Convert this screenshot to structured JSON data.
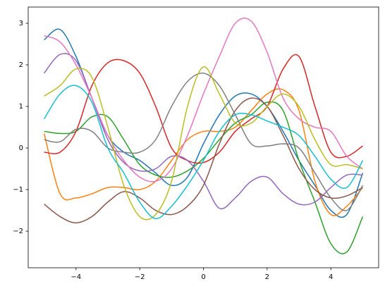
{
  "chart_data": {
    "type": "line",
    "x": [
      -5,
      -4.5,
      -4,
      -3.5,
      -3,
      -2.5,
      -2,
      -1.5,
      -1,
      -0.5,
      0,
      0.5,
      1,
      1.5,
      2,
      2.5,
      3,
      3.5,
      4,
      4.5,
      5
    ],
    "xlim": [
      -5.5,
      5.5
    ],
    "ylim": [
      -2.88,
      3.39
    ],
    "xticks": [
      {
        "value": -4,
        "label": "−4"
      },
      {
        "value": -2,
        "label": "−2"
      },
      0,
      2,
      4
    ],
    "yticks": [
      {
        "value": -2,
        "label": "−2"
      },
      {
        "value": -1,
        "label": "−1"
      },
      0,
      1,
      2,
      3
    ],
    "grid": false,
    "series": [
      {
        "color": "#1f77b4",
        "values": [
          2.6,
          2.85,
          2.2,
          1.2,
          0.3,
          -0.1,
          -0.3,
          -0.6,
          -0.9,
          -0.7,
          0.1,
          0.8,
          1.25,
          1.3,
          1.0,
          0.4,
          -0.3,
          -0.9,
          -1.5,
          -1.6,
          -0.6
        ]
      },
      {
        "color": "#ff7f0e",
        "values": [
          0.35,
          -1.1,
          -1.2,
          -1.1,
          -0.95,
          -0.95,
          -1.0,
          -0.8,
          -0.3,
          0.2,
          0.4,
          0.4,
          0.5,
          0.9,
          1.3,
          1.4,
          0.9,
          -0.8,
          -1.6,
          -1.4,
          -0.95
        ]
      },
      {
        "color": "#2ca02c",
        "values": [
          0.4,
          0.35,
          0.4,
          0.75,
          0.75,
          0.2,
          -0.4,
          -0.65,
          -0.7,
          -0.55,
          -0.25,
          0.2,
          0.6,
          0.8,
          1.1,
          0.9,
          -0.3,
          -1.3,
          -2.3,
          -2.5,
          -1.65
        ]
      },
      {
        "color": "#d62728",
        "values": [
          -0.1,
          -0.1,
          0.4,
          1.5,
          2.05,
          2.1,
          1.8,
          1.0,
          0.0,
          -0.3,
          -0.35,
          -0.1,
          0.4,
          0.7,
          1.0,
          1.9,
          2.2,
          1.0,
          -0.1,
          -0.2,
          0.05
        ]
      },
      {
        "color": "#9467bd",
        "values": [
          1.8,
          2.25,
          2.1,
          1.2,
          0.2,
          -0.35,
          -0.55,
          -0.5,
          -0.2,
          -0.3,
          -0.8,
          -1.45,
          -1.2,
          -0.8,
          -0.7,
          -1.1,
          -1.35,
          -1.3,
          -0.95,
          -0.65,
          -0.65
        ]
      },
      {
        "color": "#8c564b",
        "values": [
          -1.35,
          -1.65,
          -1.8,
          -1.65,
          -1.3,
          -1.05,
          -1.2,
          -1.5,
          -1.6,
          -1.4,
          -0.9,
          0.1,
          0.9,
          1.2,
          1.0,
          0.3,
          -0.5,
          -1.0,
          -1.2,
          -1.15,
          -0.95
        ]
      },
      {
        "color": "#e377c2",
        "values": [
          2.7,
          2.55,
          2.0,
          1.2,
          0.3,
          -0.3,
          -0.7,
          -0.8,
          -0.5,
          0.3,
          1.3,
          2.2,
          3.0,
          3.05,
          2.3,
          1.2,
          0.7,
          0.5,
          0.4,
          -0.2,
          -0.5
        ]
      },
      {
        "color": "#7f7f7f",
        "values": [
          0.2,
          0.15,
          0.45,
          0.4,
          0.0,
          -0.1,
          -0.1,
          0.2,
          1.0,
          1.6,
          1.8,
          1.5,
          0.8,
          0.1,
          0.05,
          0.1,
          0.0,
          -0.6,
          -1.2,
          -1.5,
          -0.9
        ]
      },
      {
        "color": "#bcbd22",
        "values": [
          1.25,
          1.5,
          1.9,
          1.7,
          0.5,
          -0.9,
          -1.65,
          -1.6,
          -0.8,
          1.0,
          1.95,
          1.3,
          0.6,
          0.6,
          1.0,
          1.3,
          1.0,
          0.2,
          -0.4,
          -0.4,
          -0.5
        ]
      },
      {
        "color": "#17becf",
        "values": [
          0.7,
          1.3,
          1.5,
          1.1,
          0.0,
          -0.6,
          -1.3,
          -1.7,
          -1.4,
          -0.9,
          -0.3,
          0.4,
          0.8,
          0.8,
          0.65,
          0.5,
          0.3,
          -0.2,
          -0.75,
          -0.95,
          -0.3
        ]
      }
    ]
  }
}
